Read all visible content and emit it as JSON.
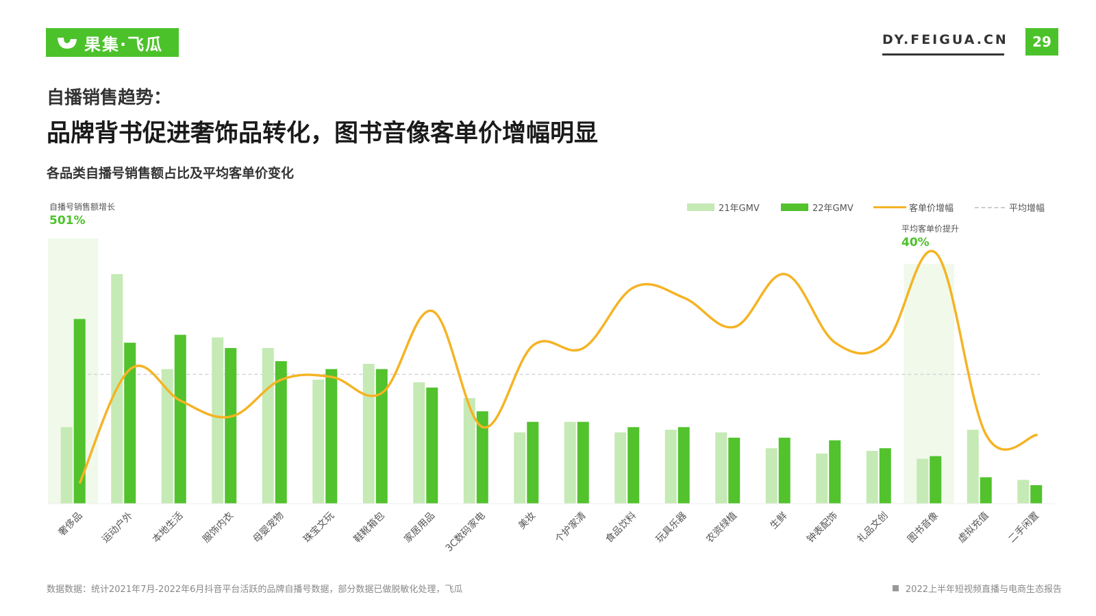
{
  "header": {
    "logo_text": "果集·飞瓜",
    "site": "DY.FEIGUA.CN",
    "page_number": "29"
  },
  "kicker": "自播销售趋势：",
  "headline": "品牌背书促进奢饰品转化，图书音像客单价增幅明显",
  "subtitle": "各品类自播号销售额占比及平均客单价变化",
  "highlights": {
    "left_label": "自播号销售额增长",
    "left_value": "501%",
    "right_label": "平均客单价提升",
    "right_value": "40%"
  },
  "legend": {
    "gmv21": "21年GMV",
    "gmv22": "22年GMV",
    "growth": "客单价增幅",
    "avg": "平均增幅"
  },
  "footer": {
    "source": "数据数据：统计2021年7月-2022年6月抖音平台活跃的品牌自播号数据，部分数据已做脱敏化处理，飞瓜",
    "report": "2022上半年短视频直播与电商生态报告"
  },
  "colors": {
    "accent": "#4cc22a",
    "gmv21": "#c5eab5",
    "gmv22": "#52c22d",
    "line": "#f5b324",
    "highlight_bg": "#f0f9ea"
  },
  "chart_data": {
    "type": "bar",
    "categories": [
      "奢侈品",
      "运动户外",
      "本地生活",
      "服饰内衣",
      "母婴宠物",
      "珠宝文玩",
      "鞋靴箱包",
      "家居用品",
      "3C数码家电",
      "美妆",
      "个护家清",
      "食品饮料",
      "玩具乐器",
      "农资绿植",
      "生鲜",
      "钟表配饰",
      "礼品文创",
      "图书音像",
      "虚拟充值",
      "二手闲置"
    ],
    "series": [
      {
        "name": "21年GMV",
        "type": "bar",
        "values": [
          29,
          87,
          51,
          63,
          59,
          47,
          53,
          46,
          40,
          27,
          31,
          27,
          28,
          27,
          21,
          19,
          20,
          17,
          28,
          9
        ]
      },
      {
        "name": "22年GMV",
        "type": "bar",
        "values": [
          70,
          61,
          64,
          59,
          54,
          51,
          51,
          44,
          35,
          31,
          31,
          29,
          29,
          25,
          25,
          24,
          21,
          18,
          10,
          7
        ]
      },
      {
        "name": "客单价增幅",
        "type": "line",
        "values": [
          8,
          51,
          39,
          33,
          47,
          48,
          42,
          73,
          29,
          60,
          59,
          82,
          78,
          67,
          87,
          61,
          61,
          95,
          26,
          26
        ]
      }
    ],
    "reference_line": {
      "name": "平均增幅",
      "value": 49
    },
    "highlighted_categories": [
      "奢侈品",
      "图书音像"
    ],
    "ylim": [
      0,
      100
    ],
    "legend_position": "top-right",
    "grid": false
  }
}
